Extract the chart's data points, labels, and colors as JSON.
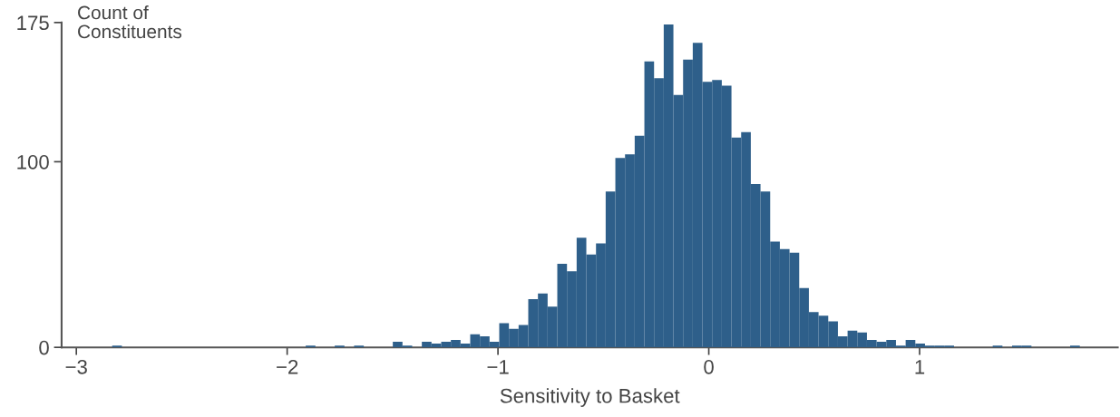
{
  "chart_data": {
    "type": "histogram",
    "xlabel": "Sensitivity to Basket",
    "ylabel": "Count of\nConstituents",
    "bins": [
      -2.83,
      -2.7841,
      -2.7382,
      -2.6923,
      -2.6464,
      -2.6005,
      -2.5546,
      -2.5087,
      -2.4628,
      -2.4169,
      -2.371,
      -2.3251,
      -2.2792,
      -2.2333,
      -2.1874,
      -2.1415,
      -2.0956,
      -2.0497,
      -2.0038,
      -1.9579,
      -1.912,
      -1.8661,
      -1.8202,
      -1.7743,
      -1.7284,
      -1.6825,
      -1.6366,
      -1.5907,
      -1.5448,
      -1.4989,
      -1.453,
      -1.4071,
      -1.3612,
      -1.3153,
      -1.2694,
      -1.2235,
      -1.1776,
      -1.1317,
      -1.0858,
      -1.0399,
      -0.994,
      -0.9481,
      -0.9022,
      -0.8563,
      -0.8104,
      -0.7645,
      -0.7186,
      -0.6727,
      -0.6268,
      -0.5809,
      -0.535,
      -0.4891,
      -0.4432,
      -0.3973,
      -0.3514,
      -0.3055,
      -0.2596,
      -0.2137,
      -0.1678,
      -0.1219,
      -0.076,
      -0.0301,
      0.0158,
      0.0617,
      0.1076,
      0.1535,
      0.1994,
      0.2453,
      0.2912,
      0.3371,
      0.383,
      0.4289,
      0.4748,
      0.5207,
      0.5666,
      0.6125,
      0.6584,
      0.7043,
      0.7502,
      0.7961,
      0.842,
      0.8879,
      0.9338,
      0.9797,
      1.0256,
      1.0715,
      1.1174,
      1.1633,
      1.2092,
      1.2551,
      1.301,
      1.3469,
      1.3928,
      1.4387,
      1.4846,
      1.5305,
      1.5764,
      1.6223,
      1.6682,
      1.7141,
      1.76
    ],
    "values": [
      1,
      0,
      0,
      0,
      0,
      0,
      0,
      0,
      0,
      0,
      0,
      0,
      0,
      0,
      0,
      0,
      0,
      0,
      0,
      0,
      1,
      0,
      0,
      1,
      0,
      1,
      0,
      0,
      0,
      3,
      1,
      0,
      3,
      2,
      3,
      4,
      2,
      7,
      6,
      3,
      13,
      10,
      12,
      26,
      29,
      22,
      45,
      41,
      59,
      50,
      56,
      84,
      102,
      104,
      114,
      154,
      145,
      174,
      136,
      155,
      164,
      143,
      144,
      141,
      113,
      116,
      88,
      84,
      57,
      53,
      51,
      32,
      19,
      17,
      14,
      6,
      9,
      8,
      4,
      3,
      4,
      1,
      4,
      2,
      1,
      1,
      1,
      0,
      0,
      0,
      0,
      1,
      0,
      1,
      1,
      0,
      0,
      0,
      0,
      1
    ],
    "color": "#2e5f8a",
    "xlim": [
      -3.07,
      1.94
    ],
    "xticks": [
      {
        "value": -3,
        "label": "−3"
      },
      {
        "value": -2,
        "label": "−2"
      },
      {
        "value": -1,
        "label": "−1"
      },
      0,
      1
    ],
    "ylim": [
      0,
      175
    ],
    "yticks": [
      0,
      100,
      175
    ],
    "grid": false
  }
}
